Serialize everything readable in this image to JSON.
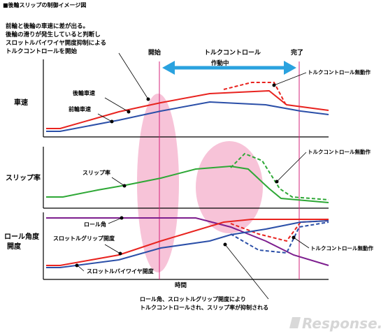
{
  "header": {
    "title": "■後輪スリップの制御イメージ図"
  },
  "annotations": {
    "top_note": [
      "前輪と後輪の車速に差が出る。",
      "後輪の滑りが発生していると判断し",
      "スロットルバイワイヤ開度抑制による",
      "トルクコントロールを開始"
    ],
    "start": "開始",
    "torque_control": "トルクコントロール",
    "active": "作動中",
    "end": "完了",
    "bottom_note": [
      "ロール角、スロットルグリップ開度により",
      "トルクコントロールされ、スリップ率が抑制される"
    ]
  },
  "panels": {
    "speed": {
      "label": "車速",
      "rear_speed": "後輪車速",
      "front_speed": "前輪車速",
      "no_control": "トルクコントロール無動作"
    },
    "slip": {
      "label": "スリップ率",
      "slip_rate": "スリップ率",
      "no_control": "トルクコントロール無動作"
    },
    "roll": {
      "label_line1": "ロール角度",
      "label_line2": "開度",
      "roll_angle": "ロール角",
      "throttle_grip": "スロットルグリップ開度",
      "throttle_wire": "スロットルバイワイヤ開度",
      "no_control": "トルクコントロール無動作"
    }
  },
  "axis": {
    "x_label": "時間"
  },
  "watermark": {
    "text": "Response."
  },
  "colors": {
    "red": "#e8231f",
    "blue": "#2b4fa8",
    "green": "#2ea836",
    "purple": "#7d1e8e",
    "magenta": "#d4237a",
    "pink": "#f7c3d8",
    "arrow": "#2aa2df"
  }
}
